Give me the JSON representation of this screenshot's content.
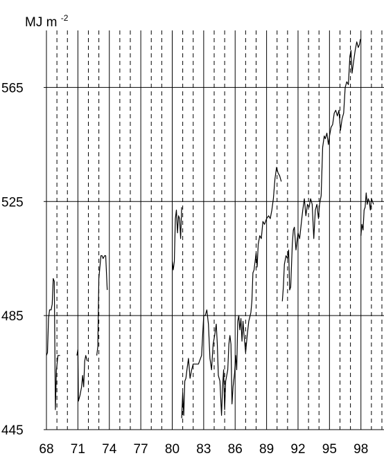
{
  "chart_data": {
    "type": "line",
    "title": "",
    "xlabel": "",
    "ylabel": "MJ m-2",
    "ylabel_base": "MJ m",
    "ylabel_sup": "-2",
    "xlim": [
      68,
      100.2
    ],
    "ylim": [
      445,
      585
    ],
    "x_tick_values": [
      68,
      71,
      74,
      77,
      80,
      83,
      86,
      89,
      92,
      95,
      98
    ],
    "x_tick_labels": [
      "68",
      "71",
      "74",
      "77",
      "80",
      "83",
      "86",
      "89",
      "92",
      "95",
      "98"
    ],
    "y_tick_values": [
      445,
      485,
      525,
      565
    ],
    "y_tick_labels": [
      "445",
      "485",
      "525",
      "565"
    ],
    "grid": {
      "major_vertical_solid_at": [
        68,
        71,
        74,
        77,
        80,
        83,
        86,
        89,
        92,
        95,
        98
      ],
      "minor_vertical_dashed_every": 1,
      "horizontal_solid_at": [
        485,
        525,
        565
      ]
    },
    "line_color": "#000000",
    "series": [
      {
        "segments": [
          [
            [
              68.0,
              471
            ],
            [
              68.1,
              472
            ],
            [
              68.2,
              484
            ],
            [
              68.3,
              487
            ],
            [
              68.45,
              487
            ],
            [
              68.55,
              489
            ],
            [
              68.65,
              498
            ],
            [
              68.75,
              497
            ],
            [
              68.85,
              452
            ],
            [
              68.95,
              466
            ],
            [
              69.1,
              471
            ],
            [
              69.3,
              471
            ]
          ],
          [
            [
              70.9,
              471
            ],
            [
              71.0,
              473
            ],
            [
              71.05,
              455
            ],
            [
              71.2,
              457
            ],
            [
              71.35,
              460
            ],
            [
              71.45,
              464
            ],
            [
              71.55,
              460
            ],
            [
              71.65,
              469
            ],
            [
              71.75,
              471
            ],
            [
              71.9,
              469
            ]
          ],
          [
            [
              72.8,
              471
            ],
            [
              72.9,
              474
            ],
            [
              73.0,
              498
            ],
            [
              73.1,
              502
            ],
            [
              73.2,
              506
            ],
            [
              73.3,
              506
            ],
            [
              73.4,
              505
            ],
            [
              73.55,
              506
            ],
            [
              73.65,
              506
            ],
            [
              73.8,
              494
            ]
          ],
          [
            [
              80.0,
              504
            ],
            [
              80.1,
              501
            ],
            [
              80.2,
              504
            ],
            [
              80.3,
              519
            ],
            [
              80.4,
              522
            ],
            [
              80.5,
              514
            ],
            [
              80.6,
              520
            ],
            [
              80.7,
              519
            ],
            [
              80.8,
              512
            ],
            [
              80.9,
              523
            ]
          ],
          [
            [
              80.9,
              449
            ],
            [
              81.0,
              458
            ],
            [
              81.1,
              450
            ],
            [
              81.2,
              462
            ],
            [
              81.3,
              463
            ],
            [
              81.4,
              466
            ],
            [
              81.55,
              470
            ],
            [
              81.7,
              463
            ],
            [
              81.85,
              466
            ],
            [
              82.0,
              468
            ],
            [
              82.5,
              468
            ],
            [
              82.8,
              471
            ],
            [
              83.0,
              485
            ],
            [
              83.15,
              485
            ],
            [
              83.3,
              487
            ],
            [
              83.45,
              482
            ],
            [
              83.6,
              470
            ],
            [
              83.75,
              466
            ],
            [
              83.9,
              475
            ],
            [
              84.05,
              478
            ],
            [
              84.2,
              482
            ],
            [
              84.3,
              475
            ],
            [
              84.4,
              464
            ],
            [
              84.55,
              462
            ],
            [
              84.7,
              450
            ],
            [
              84.8,
              460
            ],
            [
              84.9,
              466
            ],
            [
              85.0,
              452
            ],
            [
              85.1,
              462
            ],
            [
              85.3,
              466
            ],
            [
              85.4,
              475
            ],
            [
              85.5,
              478
            ],
            [
              85.6,
              475
            ],
            [
              85.7,
              454
            ],
            [
              85.8,
              460
            ],
            [
              85.95,
              465
            ],
            [
              86.05,
              471
            ],
            [
              86.15,
              466
            ],
            [
              86.25,
              483
            ],
            [
              86.35,
              485
            ],
            [
              86.45,
              480
            ],
            [
              86.55,
              484
            ],
            [
              86.65,
              476
            ],
            [
              86.75,
              483
            ],
            [
              86.85,
              478
            ],
            [
              87.0,
              472
            ],
            [
              87.15,
              478
            ],
            [
              87.3,
              483
            ],
            [
              87.5,
              486
            ],
            [
              87.6,
              490
            ],
            [
              87.7,
              500
            ],
            [
              87.8,
              501
            ],
            [
              88.0,
              507
            ],
            [
              88.1,
              502
            ],
            [
              88.2,
              510
            ],
            [
              88.35,
              513
            ],
            [
              88.5,
              512
            ],
            [
              88.65,
              518
            ],
            [
              88.8,
              517
            ],
            [
              89.0,
              519
            ],
            [
              89.2,
              520
            ],
            [
              89.35,
              519
            ],
            [
              89.5,
              522
            ],
            [
              89.65,
              526
            ],
            [
              89.8,
              533
            ],
            [
              89.95,
              537
            ],
            [
              90.1,
              535
            ],
            [
              90.25,
              534
            ],
            [
              90.4,
              532
            ]
          ],
          [
            [
              90.5,
              490
            ],
            [
              90.6,
              495
            ],
            [
              90.7,
              503
            ],
            [
              90.85,
              506
            ],
            [
              91.0,
              505
            ],
            [
              91.1,
              508
            ],
            [
              91.2,
              494
            ],
            [
              91.3,
              495
            ],
            [
              91.45,
              510
            ],
            [
              91.55,
              515
            ],
            [
              91.65,
              516
            ],
            [
              91.8,
              508
            ],
            [
              92.0,
              514
            ],
            [
              92.15,
              512
            ],
            [
              92.3,
              517
            ],
            [
              92.45,
              522
            ],
            [
              92.6,
              526
            ],
            [
              92.75,
              520
            ],
            [
              92.9,
              524
            ],
            [
              93.05,
              523
            ],
            [
              93.2,
              526
            ],
            [
              93.35,
              524
            ],
            [
              93.5,
              512
            ],
            [
              93.65,
              522
            ],
            [
              93.8,
              524
            ],
            [
              93.95,
              519
            ],
            [
              94.05,
              524
            ],
            [
              94.2,
              527
            ],
            [
              94.35,
              544
            ],
            [
              94.5,
              548
            ],
            [
              94.6,
              547
            ],
            [
              94.75,
              549
            ],
            [
              94.9,
              545
            ],
            [
              95.0,
              548
            ],
            [
              95.15,
              551
            ],
            [
              95.3,
              552
            ],
            [
              95.45,
              556
            ],
            [
              95.6,
              557
            ],
            [
              95.75,
              555
            ],
            [
              95.9,
              557
            ],
            [
              96.05,
              550
            ],
            [
              96.2,
              554
            ],
            [
              96.35,
              556
            ],
            [
              96.5,
              565
            ],
            [
              96.65,
              567
            ],
            [
              96.8,
              566
            ],
            [
              96.95,
              576
            ],
            [
              97.05,
              578
            ],
            [
              97.15,
              570
            ],
            [
              97.3,
              574
            ],
            [
              97.45,
              578
            ],
            [
              97.6,
              581
            ],
            [
              97.75,
              579
            ],
            [
              97.85,
              580
            ],
            [
              97.95,
              582
            ]
          ],
          [
            [
              98.0,
              513
            ],
            [
              98.1,
              517
            ],
            [
              98.2,
              515
            ],
            [
              98.3,
              522
            ],
            [
              98.4,
              523
            ],
            [
              98.5,
              528
            ],
            [
              98.6,
              524
            ],
            [
              98.7,
              526
            ],
            [
              98.8,
              525
            ],
            [
              98.9,
              522
            ],
            [
              99.0,
              526
            ],
            [
              99.2,
              524
            ]
          ]
        ]
      }
    ]
  }
}
